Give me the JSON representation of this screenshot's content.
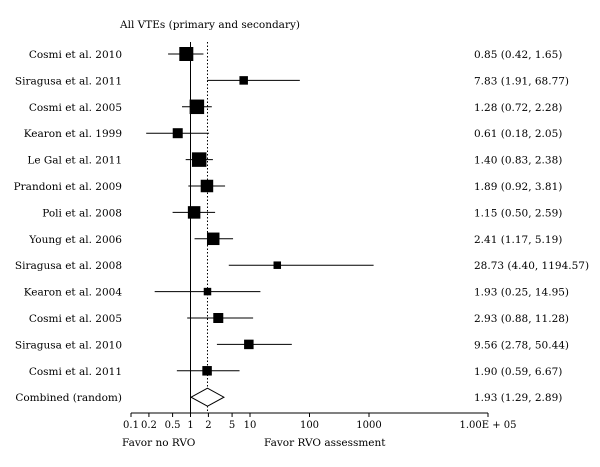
{
  "chart_data": {
    "type": "forest",
    "title": "All VTEs (primary and secondary)",
    "x_scale": "log",
    "xlim": [
      0.1,
      100000
    ],
    "reference_value": 1,
    "combined_reference_value": 1.93,
    "ticks": [
      {
        "value": 0.1,
        "label": "0.1"
      },
      {
        "value": 0.2,
        "label": "0.2"
      },
      {
        "value": 0.5,
        "label": "0.5"
      },
      {
        "value": 1,
        "label": "1"
      },
      {
        "value": 2,
        "label": "2"
      },
      {
        "value": 5,
        "label": "5"
      },
      {
        "value": 10,
        "label": "10"
      },
      {
        "value": 100,
        "label": "100"
      },
      {
        "value": 1000,
        "label": "1000"
      },
      {
        "value": 100000,
        "label": "1.00E + 05"
      }
    ],
    "xlabel_left": "Favor no RVO",
    "xlabel_right": "Favor RVO assessment",
    "studies": [
      {
        "label": "Cosmi et al. 2010",
        "est": 0.85,
        "lo": 0.42,
        "hi": 1.65,
        "text": "0.85 (0.42, 1.65)",
        "weight": 1.0
      },
      {
        "label": "Siragusa et al. 2011",
        "est": 7.83,
        "lo": 1.91,
        "hi": 68.77,
        "text": "7.83 (1.91, 68.77)",
        "weight": 0.45
      },
      {
        "label": "Cosmi et al. 2005",
        "est": 1.28,
        "lo": 0.72,
        "hi": 2.28,
        "text": "1.28 (0.72, 2.28)",
        "weight": 1.05
      },
      {
        "label": "Kearon et al. 1999",
        "est": 0.61,
        "lo": 0.18,
        "hi": 2.05,
        "text": "0.61 (0.18, 2.05)",
        "weight": 0.6
      },
      {
        "label": "Le Gal et al. 2011",
        "est": 1.4,
        "lo": 0.83,
        "hi": 2.38,
        "text": "1.40 (0.83, 2.38)",
        "weight": 1.05
      },
      {
        "label": "Prandoni et al. 2009",
        "est": 1.89,
        "lo": 0.92,
        "hi": 3.81,
        "text": "1.89 (0.92, 3.81)",
        "weight": 0.85
      },
      {
        "label": "Poli et al. 2008",
        "est": 1.15,
        "lo": 0.5,
        "hi": 2.59,
        "text": "1.15 (0.50, 2.59)",
        "weight": 0.85
      },
      {
        "label": "Young et al. 2006",
        "est": 2.41,
        "lo": 1.17,
        "hi": 5.19,
        "text": "2.41 (1.17, 5.19)",
        "weight": 0.85
      },
      {
        "label": "Siragusa et al. 2008",
        "est": 28.73,
        "lo": 4.4,
        "hi": 1194.57,
        "text": "28.73 (4.40, 1194.57)",
        "weight": 0.35
      },
      {
        "label": "Kearon et al. 2004",
        "est": 1.93,
        "lo": 0.25,
        "hi": 14.95,
        "text": "1.93 (0.25, 14.95)",
        "weight": 0.35
      },
      {
        "label": "Cosmi et al. 2005",
        "est": 2.93,
        "lo": 0.88,
        "hi": 11.28,
        "text": "2.93 (0.88, 11.28)",
        "weight": 0.6
      },
      {
        "label": "Siragusa et al. 2010",
        "est": 9.56,
        "lo": 2.78,
        "hi": 50.44,
        "text": "9.56 (2.78, 50.44)",
        "weight": 0.55
      },
      {
        "label": "Cosmi et al. 2011",
        "est": 1.9,
        "lo": 0.59,
        "hi": 6.67,
        "text": "1.90 (0.59, 6.67)",
        "weight": 0.55
      }
    ],
    "combined": {
      "label": "Combined (random)",
      "est": 1.93,
      "lo": 1.29,
      "hi": 2.89,
      "text": "1.93 (1.29, 2.89)"
    }
  }
}
